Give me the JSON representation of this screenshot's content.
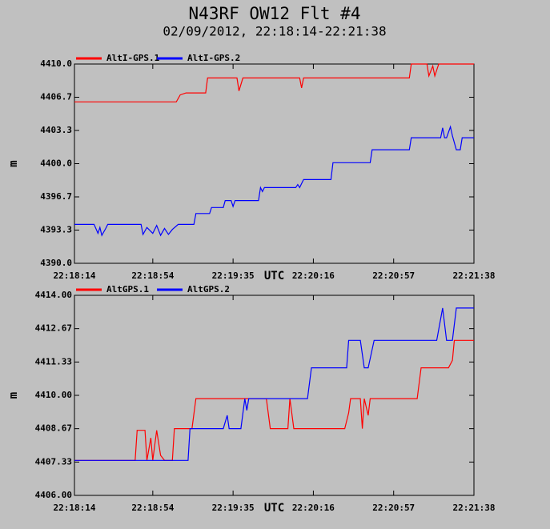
{
  "title": "N43RF OW12 Flt #4",
  "subtitle": "02/09/2012, 22:18:14-22:21:38",
  "chart_data": [
    {
      "type": "line",
      "xlabel": "UTC",
      "ylabel": "m",
      "xlim": [
        "22:18:14",
        "22:21:38"
      ],
      "xticks": [
        "22:18:14",
        "22:18:54",
        "22:19:35",
        "22:20:16",
        "22:20:57",
        "22:21:38"
      ],
      "ylim": [
        4390,
        4410
      ],
      "yticks": [
        {
          "value": 4390,
          "label": "4390.0"
        },
        {
          "value": 4393.333,
          "label": "4393.3"
        },
        {
          "value": 4396.667,
          "label": "4396.7"
        },
        {
          "value": 4400,
          "label": "4400.0"
        },
        {
          "value": 4403.333,
          "label": "4403.3"
        },
        {
          "value": 4406.667,
          "label": "4406.7"
        },
        {
          "value": 4410,
          "label": "4410.0"
        }
      ],
      "series": [
        {
          "name": "AltI-GPS.1",
          "color": "#ff0000",
          "x": [
            "22:18:14",
            "22:19:06",
            "22:19:08",
            "22:19:11",
            "22:19:21",
            "22:19:22",
            "22:19:37",
            "22:19:38",
            "22:19:40",
            "22:20:09",
            "22:20:10",
            "22:20:11",
            "22:21:05",
            "22:21:06",
            "22:21:14",
            "22:21:15",
            "22:21:17",
            "22:21:18",
            "22:21:20",
            "22:21:38"
          ],
          "values": [
            4406.2,
            4406.2,
            4406.9,
            4407.1,
            4407.1,
            4408.6,
            4408.6,
            4407.3,
            4408.6,
            4408.6,
            4407.6,
            4408.6,
            4408.6,
            4410.0,
            4410.0,
            4408.8,
            4409.8,
            4408.8,
            4410.0,
            4410.0
          ]
        },
        {
          "name": "AltI-GPS.2",
          "color": "#0000ff",
          "x": [
            "22:18:14",
            "22:18:24",
            "22:18:26",
            "22:18:27",
            "22:18:28",
            "22:18:30",
            "22:18:31",
            "22:18:48",
            "22:18:49",
            "22:18:51",
            "22:18:54",
            "22:18:56",
            "22:18:58",
            "22:19:00",
            "22:19:02",
            "22:19:04",
            "22:19:07",
            "22:19:15",
            "22:19:16",
            "22:19:23",
            "22:19:24",
            "22:19:30",
            "22:19:31",
            "22:19:34",
            "22:19:35",
            "22:19:36",
            "22:19:48",
            "22:19:49",
            "22:19:50",
            "22:19:51",
            "22:20:07",
            "22:20:08",
            "22:20:09",
            "22:20:10",
            "22:20:11",
            "22:20:25",
            "22:20:26",
            "22:20:45",
            "22:20:46",
            "22:21:05",
            "22:21:06",
            "22:21:21",
            "22:21:22",
            "22:21:23",
            "22:21:24",
            "22:21:26",
            "22:21:27",
            "22:21:29",
            "22:21:31",
            "22:21:32",
            "22:21:38"
          ],
          "values": [
            4393.9,
            4393.9,
            4393.0,
            4393.6,
            4392.8,
            4393.5,
            4393.9,
            4393.9,
            4392.9,
            4393.6,
            4393.0,
            4393.8,
            4392.8,
            4393.5,
            4392.9,
            4393.4,
            4393.9,
            4393.9,
            4395.0,
            4395.0,
            4395.6,
            4395.6,
            4396.3,
            4396.3,
            4395.7,
            4396.3,
            4396.3,
            4397.6,
            4397.2,
            4397.6,
            4397.6,
            4397.9,
            4397.6,
            4398.0,
            4398.4,
            4398.4,
            4400.1,
            4400.1,
            4401.4,
            4401.4,
            4402.6,
            4402.6,
            4403.6,
            4402.6,
            4402.6,
            4403.7,
            4402.8,
            4401.4,
            4401.4,
            4402.6,
            4402.6
          ]
        }
      ]
    },
    {
      "type": "line",
      "xlabel": "UTC",
      "ylabel": "m",
      "xlim": [
        "22:18:14",
        "22:21:38"
      ],
      "xticks": [
        "22:18:14",
        "22:18:54",
        "22:19:35",
        "22:20:16",
        "22:20:57",
        "22:21:38"
      ],
      "ylim": [
        4406,
        4414
      ],
      "yticks": [
        {
          "value": 4406,
          "label": "4406.00"
        },
        {
          "value": 4407.333,
          "label": "4407.33"
        },
        {
          "value": 4408.667,
          "label": "4408.67"
        },
        {
          "value": 4410,
          "label": "4410.00"
        },
        {
          "value": 4411.333,
          "label": "4411.33"
        },
        {
          "value": 4412.667,
          "label": "4412.67"
        },
        {
          "value": 4414,
          "label": "4414.00"
        }
      ],
      "series": [
        {
          "name": "AltGPS.1",
          "color": "#ff0000",
          "x": [
            "22:18:14",
            "22:18:45",
            "22:18:46",
            "22:18:50",
            "22:18:51",
            "22:18:53",
            "22:18:54",
            "22:18:56",
            "22:18:58",
            "22:19:00",
            "22:19:04",
            "22:19:05",
            "22:19:14",
            "22:19:16",
            "22:19:52",
            "22:19:54",
            "22:20:03",
            "22:20:04",
            "22:20:06",
            "22:20:32",
            "22:20:34",
            "22:20:35",
            "22:20:40",
            "22:20:41",
            "22:20:42",
            "22:20:44",
            "22:20:45",
            "22:21:09",
            "22:21:11",
            "22:21:25",
            "22:21:27",
            "22:21:28",
            "22:21:38"
          ],
          "values": [
            4407.4,
            4407.4,
            4408.6,
            4408.6,
            4407.4,
            4408.3,
            4407.4,
            4408.6,
            4407.6,
            4407.4,
            4407.4,
            4408.67,
            4408.67,
            4409.87,
            4409.87,
            4408.67,
            4408.67,
            4409.87,
            4408.67,
            4408.67,
            4409.3,
            4409.87,
            4409.87,
            4408.67,
            4409.87,
            4409.2,
            4409.87,
            4409.87,
            4411.1,
            4411.1,
            4411.4,
            4412.2,
            4412.2
          ]
        },
        {
          "name": "AltGPS.2",
          "color": "#0000ff",
          "x": [
            "22:18:14",
            "22:19:12",
            "22:19:13",
            "22:19:30",
            "22:19:32",
            "22:19:33",
            "22:19:39",
            "22:19:41",
            "22:19:42",
            "22:19:43",
            "22:20:13",
            "22:20:15",
            "22:20:33",
            "22:20:34",
            "22:20:40",
            "22:20:42",
            "22:20:44",
            "22:20:47",
            "22:21:19",
            "22:21:22",
            "22:21:24",
            "22:21:27",
            "22:21:29",
            "22:21:38"
          ],
          "values": [
            4407.4,
            4407.4,
            4408.67,
            4408.67,
            4409.2,
            4408.67,
            4408.67,
            4409.87,
            4409.4,
            4409.87,
            4409.87,
            4411.1,
            4411.1,
            4412.2,
            4412.2,
            4411.1,
            4411.1,
            4412.2,
            4412.2,
            4413.49,
            4412.2,
            4412.2,
            4413.49,
            4413.49
          ]
        }
      ]
    }
  ]
}
